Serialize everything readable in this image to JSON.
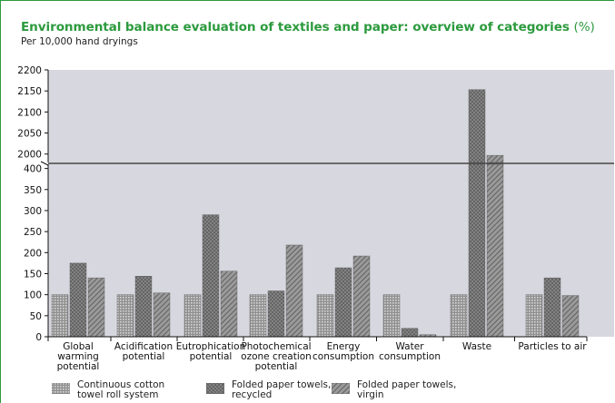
{
  "title": "Environmental balance evaluation of textiles and paper: overview of categories",
  "title_unit": "(%)",
  "subtitle": "Per 10,000 hand dryings",
  "colors": {
    "accent": "#2c9a3e",
    "plot_background": "#d7d7df",
    "bar_fill": "#8a8a8a"
  },
  "chart_data": {
    "type": "bar",
    "title": "Environmental balance evaluation of textiles and paper: overview of categories (%)",
    "subtitle": "Per 10,000 hand dryings",
    "categories": [
      "Global warming potential",
      "Acidification potential",
      "Eutrophication potential",
      "Photochemical ozone creation potential",
      "Energy consumption",
      "Water consumption",
      "Waste",
      "Particles to air"
    ],
    "category_label_lines": [
      [
        "Global",
        "warming",
        "potential"
      ],
      [
        "Acidification",
        "potential"
      ],
      [
        "Eutrophication",
        "potential"
      ],
      [
        "Photochemical",
        "ozone creation",
        "potential"
      ],
      [
        "Energy",
        "consumption"
      ],
      [
        "Water",
        "consumption"
      ],
      [
        "Waste"
      ],
      [
        "Particles to air"
      ]
    ],
    "series": [
      {
        "name": "Continuous cotton towel roll system",
        "pattern": "dots",
        "values": [
          100,
          100,
          100,
          100,
          100,
          100,
          100,
          100
        ]
      },
      {
        "name": "Folded paper towels, recycled",
        "pattern": "crosshatch",
        "values": [
          175,
          144,
          290,
          109,
          164,
          20,
          2153,
          140
        ]
      },
      {
        "name": "Folded paper towels, virgin",
        "pattern": "diagonal",
        "values": [
          140,
          104,
          156,
          218,
          192,
          5,
          1997,
          98
        ]
      }
    ],
    "y_axis_upper": {
      "ylim": [
        1980,
        2200
      ],
      "ticks": [
        2000,
        2050,
        2100,
        2150,
        2200
      ]
    },
    "y_axis_lower": {
      "ylim": [
        0,
        410
      ],
      "ticks": [
        0,
        50,
        100,
        150,
        200,
        250,
        300,
        350,
        400
      ]
    },
    "axis_break": true,
    "grid": false,
    "legend_position": "bottom"
  }
}
